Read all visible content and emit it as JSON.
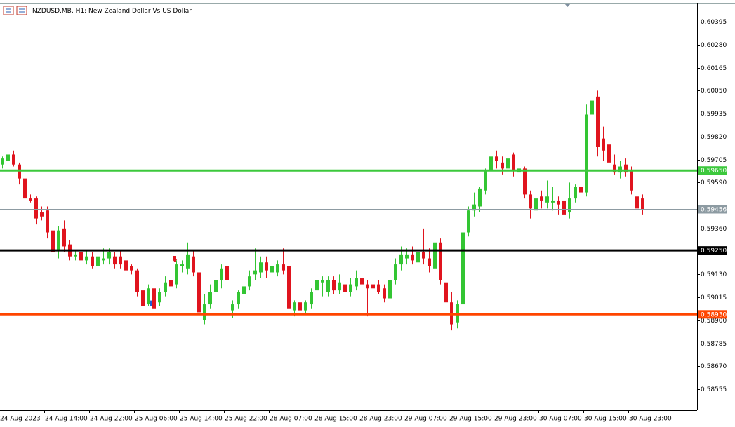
{
  "chart_data": {
    "type": "candlestick",
    "title": "NZDUSD.MB, H1:  New Zealand Dollar Vs US Dollar",
    "up_color": "#33c533",
    "down_color": "#e0141e",
    "categories": [
      "24 Aug 2023",
      null,
      null,
      null,
      null,
      null,
      null,
      null,
      "24 Aug 14:00",
      null,
      null,
      null,
      null,
      null,
      null,
      null,
      "24 Aug 22:00",
      null,
      null,
      null,
      null,
      null,
      null,
      null,
      "25 Aug 06:00",
      null,
      null,
      null,
      null,
      null,
      null,
      null,
      "25 Aug 14:00",
      null,
      null,
      null,
      null,
      null,
      null,
      null,
      "25 Aug 22:00",
      null,
      null,
      null,
      null,
      null,
      null,
      null,
      "28 Aug 07:00",
      null,
      null,
      null,
      null,
      null,
      null,
      null,
      "28 Aug 15:00",
      null,
      null,
      null,
      null,
      null,
      null,
      null,
      "28 Aug 23:00",
      null,
      null,
      null,
      null,
      null,
      null,
      null,
      "29 Aug 07:00",
      null,
      null,
      null,
      null,
      null,
      null,
      null,
      "29 Aug 15:00",
      null,
      null,
      null,
      null,
      null,
      null,
      null,
      "29 Aug 23:00",
      null,
      null,
      null,
      null,
      null,
      null,
      null,
      "30 Aug 07:00",
      null,
      null,
      null,
      null,
      null,
      null,
      null,
      "30 Aug 15:00",
      null,
      null,
      null,
      null,
      null,
      null,
      null,
      "30 Aug 23:00",
      null,
      null
    ],
    "open": [
      0.5968,
      0.597,
      0.5973,
      0.5968,
      0.5961,
      0.5951,
      0.5951,
      0.5944,
      0.5945,
      0.5935,
      0.5925,
      0.5936,
      0.5928,
      0.5922,
      0.5924,
      0.592,
      0.5922,
      0.5917,
      0.592,
      0.5921,
      0.5922,
      0.5922,
      0.592,
      0.5917,
      0.5915,
      0.5905,
      0.5898,
      0.5906,
      0.5899,
      0.5904,
      0.591,
      0.5908,
      0.5917,
      0.5916,
      0.5922,
      0.5914,
      0.589,
      0.5898,
      0.5904,
      0.591,
      0.5917,
      0.5895,
      0.5898,
      0.5903,
      0.5907,
      0.5913,
      0.5914,
      0.5919,
      0.5914,
      0.5914,
      0.5918,
      0.5917,
      0.5895,
      0.5899,
      0.5895,
      0.5898,
      0.5905,
      0.5909,
      0.5904,
      0.591,
      0.5905,
      0.5908,
      0.5904,
      0.5907,
      0.5911,
      0.5908,
      0.5908,
      0.5908,
      0.5906,
      0.5901,
      0.591,
      0.5918,
      0.5921,
      0.5923,
      0.5919,
      0.5924,
      0.5921,
      0.5916,
      0.5929,
      0.5909,
      0.5899,
      0.5889,
      0.5898,
      0.5934,
      0.5945,
      0.5947,
      0.5955,
      0.5965,
      0.5972,
      0.5969,
      0.5966,
      0.5973,
      0.5964,
      0.5966,
      0.5953,
      0.5945,
      0.5952,
      0.5949,
      0.5949,
      0.595,
      0.595,
      0.5944,
      0.5951,
      0.5957,
      0.5954,
      0.5993,
      0.6002,
      0.5981,
      0.5978,
      0.5968,
      0.5964,
      0.5968,
      0.5965,
      0.5952,
      0.5951
    ],
    "high": [
      0.5972,
      0.5975,
      0.5975,
      0.5969,
      0.5962,
      0.5953,
      0.5952,
      0.5947,
      0.5947,
      0.5937,
      0.5937,
      0.594,
      0.593,
      0.5925,
      0.5926,
      0.5925,
      0.5924,
      0.5925,
      0.5926,
      0.5926,
      0.5924,
      0.5925,
      0.5922,
      0.5918,
      0.5916,
      0.5906,
      0.5908,
      0.5907,
      0.5906,
      0.5912,
      0.5915,
      0.592,
      0.592,
      0.5929,
      0.5925,
      0.5942,
      0.5903,
      0.5908,
      0.5914,
      0.5918,
      0.5918,
      0.59,
      0.5905,
      0.591,
      0.5915,
      0.5926,
      0.5922,
      0.5922,
      0.5918,
      0.592,
      0.5926,
      0.5918,
      0.59,
      0.5902,
      0.59,
      0.5906,
      0.5912,
      0.5912,
      0.5912,
      0.5912,
      0.5913,
      0.5911,
      0.5911,
      0.5915,
      0.5914,
      0.591,
      0.591,
      0.591,
      0.5908,
      0.5914,
      0.5921,
      0.5927,
      0.5926,
      0.5927,
      0.593,
      0.5936,
      0.5926,
      0.5931,
      0.5931,
      0.5911,
      0.5904,
      0.59,
      0.5935,
      0.5947,
      0.5954,
      0.5957,
      0.5966,
      0.5976,
      0.5975,
      0.5972,
      0.5974,
      0.5974,
      0.5968,
      0.5967,
      0.5955,
      0.5953,
      0.5955,
      0.596,
      0.5957,
      0.5952,
      0.5952,
      0.5959,
      0.5958,
      0.5962,
      0.5998,
      0.6005,
      0.6005,
      0.5987,
      0.598,
      0.5973,
      0.597,
      0.5971,
      0.5967,
      0.5957,
      0.5953
    ],
    "low": [
      0.5966,
      0.5968,
      0.5967,
      0.5958,
      0.595,
      0.5949,
      0.5938,
      0.594,
      0.5931,
      0.592,
      0.5921,
      0.5924,
      0.592,
      0.592,
      0.5918,
      0.5918,
      0.5916,
      0.5914,
      0.5918,
      0.5918,
      0.5916,
      0.5916,
      0.5914,
      0.5913,
      0.5902,
      0.5896,
      0.5897,
      0.5891,
      0.5897,
      0.5902,
      0.5906,
      0.5906,
      0.5914,
      0.5913,
      0.5912,
      0.5885,
      0.5888,
      0.5896,
      0.5902,
      0.5906,
      0.5907,
      0.5891,
      0.5896,
      0.5901,
      0.5905,
      0.591,
      0.5911,
      0.5911,
      0.5911,
      0.5912,
      0.5913,
      0.5893,
      0.5892,
      0.5893,
      0.5893,
      0.5896,
      0.5903,
      0.5902,
      0.5902,
      0.5903,
      0.5903,
      0.5901,
      0.5902,
      0.5905,
      0.5905,
      0.5892,
      0.5904,
      0.5903,
      0.5899,
      0.5899,
      0.5908,
      0.5915,
      0.5918,
      0.5918,
      0.5916,
      0.5918,
      0.5914,
      0.5914,
      0.5908,
      0.5897,
      0.5885,
      0.5886,
      0.5896,
      0.5932,
      0.5942,
      0.5944,
      0.5953,
      0.5963,
      0.5966,
      0.5963,
      0.5961,
      0.5962,
      0.5961,
      0.5951,
      0.5941,
      0.5943,
      0.5946,
      0.5946,
      0.5945,
      0.5943,
      0.5939,
      0.5941,
      0.5949,
      0.5953,
      0.5952,
      0.599,
      0.5972,
      0.597,
      0.5965,
      0.5963,
      0.5961,
      0.5962,
      0.5953,
      0.594,
      0.5943
    ],
    "close": [
      0.5971,
      0.5973,
      0.5968,
      0.5961,
      0.5951,
      0.595,
      0.5941,
      0.5942,
      0.5934,
      0.5924,
      0.5935,
      0.5927,
      0.5922,
      0.5923,
      0.592,
      0.5922,
      0.5917,
      0.5922,
      0.5921,
      0.5924,
      0.5918,
      0.5918,
      0.5915,
      0.5915,
      0.5904,
      0.5897,
      0.5906,
      0.5896,
      0.5904,
      0.5909,
      0.5907,
      0.5918,
      0.5918,
      0.5923,
      0.5914,
      0.5894,
      0.5898,
      0.5904,
      0.591,
      0.5916,
      0.591,
      0.5898,
      0.5904,
      0.5907,
      0.5912,
      0.5915,
      0.5919,
      0.5915,
      0.5917,
      0.5918,
      0.5915,
      0.5896,
      0.5899,
      0.5895,
      0.5899,
      0.5904,
      0.591,
      0.591,
      0.591,
      0.5905,
      0.5909,
      0.5904,
      0.5908,
      0.5911,
      0.5908,
      0.5906,
      0.5906,
      0.5904,
      0.5901,
      0.591,
      0.5918,
      0.5923,
      0.5923,
      0.592,
      0.5924,
      0.5921,
      0.5917,
      0.5929,
      0.591,
      0.5899,
      0.5888,
      0.5898,
      0.5934,
      0.5945,
      0.5948,
      0.5956,
      0.5965,
      0.5972,
      0.597,
      0.5966,
      0.5971,
      0.5965,
      0.5966,
      0.5953,
      0.5946,
      0.5951,
      0.595,
      0.5952,
      0.595,
      0.5948,
      0.5943,
      0.5951,
      0.5957,
      0.5954,
      0.5993,
      0.6,
      0.5977,
      0.5975,
      0.5969,
      0.5964,
      0.5967,
      0.5964,
      0.5955,
      0.5946,
      0.59456
    ],
    "ylim": [
      0.5845,
      0.6049
    ],
    "yticks": [
      0.60395,
      {
        "value": 0.6028,
        "label": "0.60280"
      },
      0.60165,
      {
        "value": 0.6005,
        "label": "0.60050"
      },
      0.59935,
      {
        "value": 0.5982,
        "label": "0.59820"
      },
      0.59705,
      {
        "value": 0.5959,
        "label": "0.59590"
      },
      {
        "value": 0.5936,
        "label": "0.59360"
      },
      {
        "value": 0.5913,
        "label": "0.59130"
      },
      0.59015,
      {
        "value": 0.589,
        "label": "0.58900"
      },
      0.58785,
      {
        "value": 0.5867,
        "label": "0.58670"
      },
      0.58555
    ],
    "levels": [
      {
        "value": 0.5965,
        "label": "0.59650",
        "color": "#3cc83c"
      },
      {
        "value": 0.5925,
        "label": "0.59250",
        "color": "#000000"
      },
      {
        "value": 0.5893,
        "label": "0.58930",
        "color": "#ff4500"
      },
      {
        "value": 0.59456,
        "label": "0.59456",
        "color": "#8d9ba2"
      }
    ]
  }
}
